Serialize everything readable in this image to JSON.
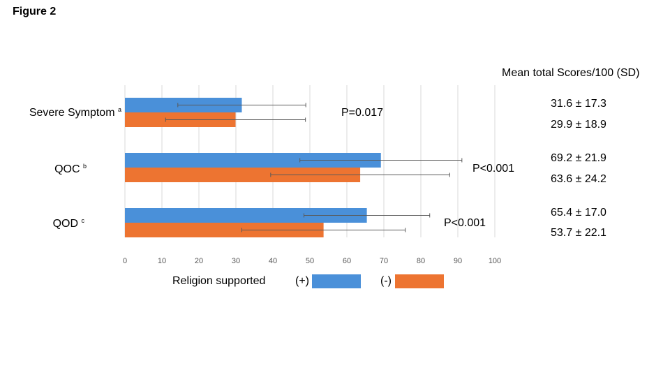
{
  "figure_label": "Figure 2",
  "stats_header": "Mean total Scores/100 (SD)",
  "colors": {
    "positive": "#4A90D9",
    "negative": "#ED7431",
    "grid": "#D9D9D9",
    "error": "#595959"
  },
  "legend": {
    "title": "Religion supported",
    "items": [
      {
        "label": "(+)",
        "color_key": "positive"
      },
      {
        "label": "(-)",
        "color_key": "negative"
      }
    ]
  },
  "chart_data": {
    "type": "bar",
    "orientation": "horizontal",
    "xlim": [
      0,
      100
    ],
    "xticks": [
      "0",
      "10",
      "20",
      "30",
      "40",
      "50",
      "60",
      "70",
      "80",
      "90",
      "100"
    ],
    "grid": true,
    "legend_position": "bottom",
    "categories": [
      {
        "label": "Severe Symptom",
        "superscript": "a",
        "p_value": "P=0.017"
      },
      {
        "label": "QOC",
        "superscript": "b",
        "p_value": "P<0.001"
      },
      {
        "label": "QOD",
        "superscript": "c",
        "p_value": "P<0.001"
      }
    ],
    "series": [
      {
        "name": "(+)",
        "values": [
          31.6,
          69.2,
          65.4
        ],
        "sd": [
          17.3,
          21.9,
          17.0
        ],
        "labels": [
          "31.6 ± 17.3",
          "69.2 ± 21.9",
          "65.4 ± 17.0"
        ]
      },
      {
        "name": "(-)",
        "values": [
          29.9,
          63.6,
          53.7
        ],
        "sd": [
          18.9,
          24.2,
          22.1
        ],
        "labels": [
          "29.9 ± 18.9",
          "63.6 ± 24.2",
          "53.7 ± 22.1"
        ]
      }
    ]
  }
}
